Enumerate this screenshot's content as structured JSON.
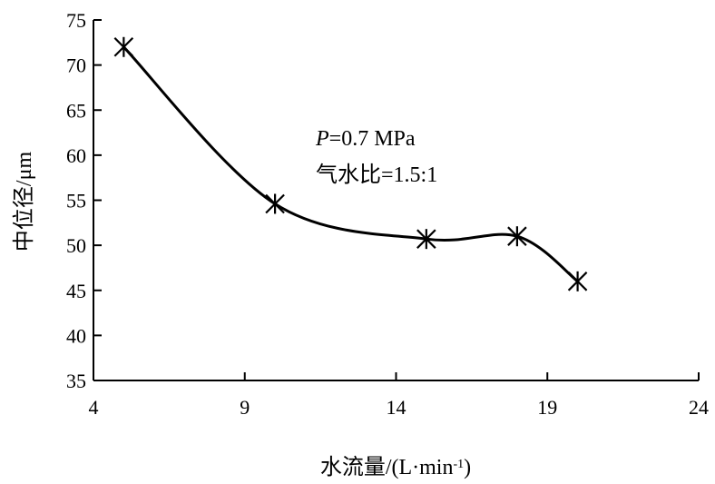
{
  "chart_data": {
    "type": "line",
    "xlabel": "水流量/(L·min",
    "xlabel_sup": "-1",
    "xlabel_tail": ")",
    "ylabel": "中位径/μm",
    "x_ticks": [
      4,
      9,
      14,
      19,
      24
    ],
    "y_ticks": [
      35,
      40,
      45,
      50,
      55,
      60,
      65,
      70,
      75
    ],
    "xlim": [
      4,
      24
    ],
    "ylim": [
      35,
      75
    ],
    "grid": false,
    "series": [
      {
        "x": [
          5,
          10,
          15,
          18,
          20
        ],
        "values": [
          72.0,
          54.6,
          50.7,
          51.0,
          46.0
        ],
        "marker": "asterisk",
        "smooth": true,
        "color": "#000000"
      }
    ],
    "annotations": {
      "pressure_var": "P",
      "pressure_text": "=0.7 MPa",
      "ratio_text": "气水比=1.5:1"
    }
  }
}
